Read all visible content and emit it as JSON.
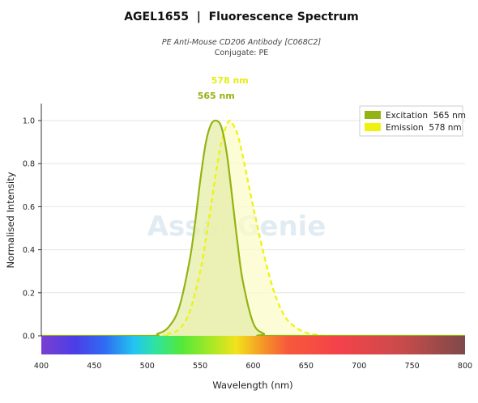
{
  "header": {
    "title": "AGEL1655  |  Fluorescence Spectrum",
    "subtitle": "PE Anti-Mouse CD206 Antibody [C068C2]",
    "conjugate": "Conjugate: PE"
  },
  "watermark": {
    "text": "AssayGenie"
  },
  "chart_data": {
    "type": "area",
    "xlabel": "Wavelength (nm)",
    "ylabel": "Normalised Intensity",
    "xlim": [
      400,
      800
    ],
    "ylim": [
      0,
      1.0
    ],
    "x_ticks": [
      400,
      450,
      500,
      550,
      600,
      650,
      700,
      750,
      800
    ],
    "y_ticks": [
      0.0,
      0.2,
      0.4,
      0.6,
      0.8,
      1.0
    ],
    "y_tick_labels": [
      "0.0",
      "0.2",
      "0.4",
      "0.6",
      "0.8",
      "1.0"
    ],
    "grid": true,
    "legend_position": "top-right",
    "series": [
      {
        "name": "Excitation",
        "legend_label": "Excitation  565 nm",
        "peak": 565,
        "peak_label": "565 nm",
        "color": "#94b312",
        "fill": "#e6eda8",
        "line_style": "solid",
        "x": [
          400,
          500,
          510,
          520,
          530,
          540,
          545,
          550,
          555,
          560,
          565,
          570,
          575,
          580,
          585,
          590,
          600,
          610,
          620,
          800
        ],
        "y": [
          0.0,
          0.0,
          0.01,
          0.04,
          0.13,
          0.35,
          0.52,
          0.72,
          0.89,
          0.98,
          1.0,
          0.97,
          0.85,
          0.65,
          0.44,
          0.26,
          0.06,
          0.01,
          0.0,
          0.0
        ]
      },
      {
        "name": "Emission",
        "legend_label": "Emission  578 nm",
        "peak": 578,
        "peak_label": "578 nm",
        "color": "#eef20c",
        "fill": "#fbfbc8",
        "line_style": "dashed",
        "x": [
          400,
          510,
          520,
          530,
          540,
          550,
          555,
          560,
          565,
          570,
          575,
          578,
          580,
          585,
          590,
          595,
          600,
          610,
          620,
          630,
          640,
          650,
          660,
          680,
          800
        ],
        "y": [
          0.0,
          0.0,
          0.01,
          0.03,
          0.11,
          0.3,
          0.44,
          0.6,
          0.76,
          0.9,
          0.98,
          1.0,
          0.99,
          0.94,
          0.84,
          0.72,
          0.6,
          0.38,
          0.2,
          0.09,
          0.04,
          0.015,
          0.005,
          0.0,
          0.0
        ]
      }
    ]
  }
}
